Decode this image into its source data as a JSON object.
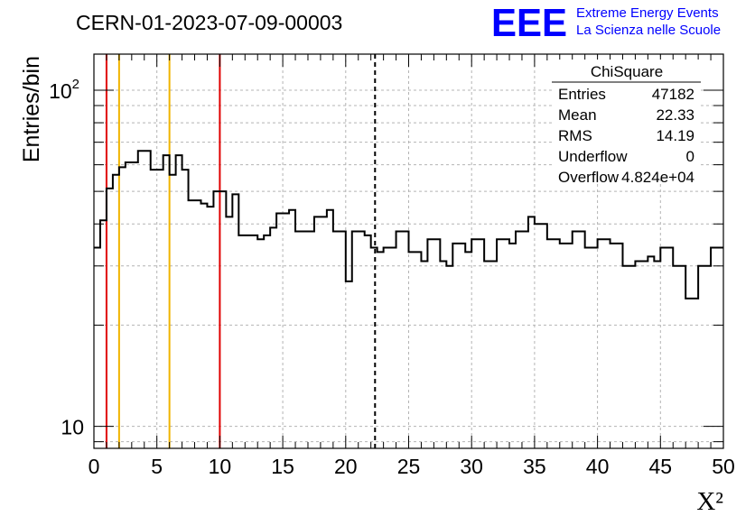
{
  "header": {
    "run_title": "CERN-01-2023-07-09-00003",
    "logo_text": "EEE",
    "logo_line1": "Extreme Energy Events",
    "logo_line2": "La Scienza nelle Scuole",
    "logo_color": "#0000ff"
  },
  "stats_box": {
    "title": "ChiSquare",
    "rows": [
      {
        "label": "Entries",
        "value": "47182"
      },
      {
        "label": "Mean",
        "value": "22.33"
      },
      {
        "label": "RMS",
        "value": "14.19"
      },
      {
        "label": "Underflow",
        "value": "0"
      },
      {
        "label": "Overflow",
        "value": "4.824e+04"
      }
    ]
  },
  "chart_data": {
    "type": "bar",
    "style": "step-histogram",
    "xlabel": "X²",
    "ylabel": "Entries/bin",
    "xlim": [
      0,
      50
    ],
    "ylim": [
      8.6,
      128
    ],
    "y_scale": "log",
    "grid": true,
    "bin_width": 0.5,
    "x_ticks": [
      "0",
      "5",
      "10",
      "15",
      "20",
      "25",
      "30",
      "35",
      "40",
      "45",
      "50"
    ],
    "y_tick_labels": [
      {
        "value": 100,
        "base": "10",
        "exp": "2"
      },
      {
        "value": 10,
        "base": "10",
        "exp": ""
      }
    ],
    "values": [
      34,
      41,
      51,
      56,
      59,
      61,
      61,
      66,
      66,
      58,
      58,
      64,
      56,
      64,
      58,
      47,
      47,
      46,
      45,
      50,
      50,
      42,
      49,
      37,
      37,
      37,
      36,
      37,
      39,
      43,
      43,
      44,
      38,
      38,
      38,
      42,
      42,
      44,
      38,
      38,
      27,
      38,
      38,
      37,
      34,
      33,
      34,
      34,
      38,
      38,
      33,
      33,
      31,
      36,
      36,
      31,
      30,
      35,
      35,
      33,
      36,
      36,
      31,
      31,
      36,
      36,
      35,
      38,
      38,
      42,
      40,
      40,
      36,
      36,
      35,
      35,
      38,
      38,
      34,
      34,
      36,
      36,
      35,
      35,
      30,
      30,
      31,
      31,
      32,
      31,
      34,
      34,
      30,
      30,
      24,
      24,
      30,
      30,
      34,
      34
    ],
    "lines": [
      {
        "x": 1,
        "color": "#e00000",
        "style": "solid"
      },
      {
        "x": 2,
        "color": "#f0b400",
        "style": "solid"
      },
      {
        "x": 6,
        "color": "#f0b400",
        "style": "solid"
      },
      {
        "x": 10,
        "color": "#e00000",
        "style": "solid"
      },
      {
        "x": 22.33,
        "color": "#000000",
        "style": "dashed"
      }
    ]
  }
}
